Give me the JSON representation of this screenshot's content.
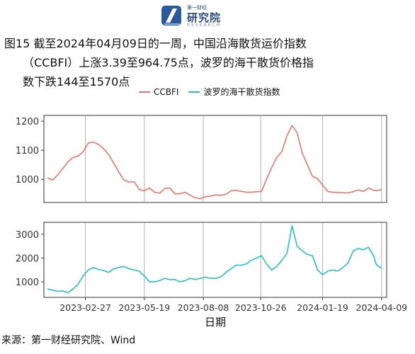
{
  "logo": {
    "text_small": "第一财经",
    "text_main": "研究院",
    "text_en": "RESEARCH"
  },
  "caption": {
    "line1": "图15  截至2024年04月09日的一周，中国沿海散货运价指数",
    "line2": "（CCBFI）上涨3.39至964.75点，波罗的海干散货价格指",
    "line3": "数下跌144至1570点"
  },
  "source": "来源：第一财经研究院、Wind",
  "colors": {
    "ccbfi": "#e8756b",
    "bdi": "#26bfc7",
    "panel_bg": "#ffffff",
    "grid": "#b0b0b0"
  },
  "chart_data": {
    "type": "line",
    "xlabel": "日期",
    "x_ticks": [
      "2023-02-27",
      "2023-05-19",
      "2023-08-08",
      "2023-10-26",
      "2024-01-19",
      "2024-04-09"
    ],
    "panels": [
      {
        "series_name": "CCBFI",
        "yticks": [
          1000,
          1100,
          1200
        ],
        "ylim": [
          920,
          1220
        ],
        "x": [
          "2023-01-06",
          "2023-01-13",
          "2023-01-20",
          "2023-02-03",
          "2023-02-10",
          "2023-02-17",
          "2023-02-24",
          "2023-03-03",
          "2023-03-10",
          "2023-03-17",
          "2023-03-24",
          "2023-03-31",
          "2023-04-07",
          "2023-04-14",
          "2023-04-21",
          "2023-04-28",
          "2023-05-05",
          "2023-05-12",
          "2023-05-19",
          "2023-05-26",
          "2023-06-02",
          "2023-06-09",
          "2023-06-16",
          "2023-06-23",
          "2023-06-30",
          "2023-07-07",
          "2023-07-14",
          "2023-07-21",
          "2023-07-28",
          "2023-08-04",
          "2023-08-11",
          "2023-08-18",
          "2023-08-25",
          "2023-09-01",
          "2023-09-08",
          "2023-09-15",
          "2023-09-22",
          "2023-10-06",
          "2023-10-13",
          "2023-10-20",
          "2023-10-27",
          "2023-11-03",
          "2023-11-10",
          "2023-11-17",
          "2023-11-24",
          "2023-12-01",
          "2023-12-08",
          "2023-12-15",
          "2023-12-22",
          "2023-12-29",
          "2024-01-05",
          "2024-01-12",
          "2024-01-19",
          "2024-01-26",
          "2024-02-02",
          "2024-02-23",
          "2024-03-01",
          "2024-03-08",
          "2024-03-15",
          "2024-03-22",
          "2024-03-29",
          "2024-04-02",
          "2024-04-09"
        ],
        "values": [
          1005,
          997,
          1015,
          1060,
          1075,
          1080,
          1095,
          1125,
          1128,
          1120,
          1105,
          1085,
          1055,
          1025,
          997,
          990,
          992,
          965,
          960,
          970,
          955,
          952,
          968,
          970,
          950,
          950,
          955,
          945,
          936,
          933,
          940,
          942,
          946,
          945,
          948,
          960,
          962,
          955,
          955,
          957,
          958,
          1000,
          1040,
          1075,
          1095,
          1150,
          1185,
          1160,
          1090,
          1050,
          1010,
          1002,
          980,
          958,
          955,
          953,
          957,
          963,
          958,
          970,
          962,
          961,
          964.75
        ]
      },
      {
        "series_name": "波罗的海干散货指数",
        "yticks": [
          1000,
          2000,
          3000
        ],
        "ylim": [
          350,
          3500
        ],
        "x": [
          "2023-01-06",
          "2023-01-13",
          "2023-01-20",
          "2023-01-27",
          "2023-02-03",
          "2023-02-10",
          "2023-02-17",
          "2023-02-24",
          "2023-03-03",
          "2023-03-10",
          "2023-03-17",
          "2023-03-24",
          "2023-03-31",
          "2023-04-07",
          "2023-04-14",
          "2023-04-21",
          "2023-04-28",
          "2023-05-05",
          "2023-05-12",
          "2023-05-19",
          "2023-05-26",
          "2023-06-02",
          "2023-06-09",
          "2023-06-16",
          "2023-06-23",
          "2023-06-30",
          "2023-07-07",
          "2023-07-14",
          "2023-07-21",
          "2023-07-28",
          "2023-08-04",
          "2023-08-11",
          "2023-08-18",
          "2023-08-25",
          "2023-09-01",
          "2023-09-08",
          "2023-09-15",
          "2023-09-22",
          "2023-09-29",
          "2023-10-06",
          "2023-10-13",
          "2023-10-20",
          "2023-10-27",
          "2023-11-03",
          "2023-11-10",
          "2023-11-17",
          "2023-11-24",
          "2023-12-01",
          "2023-12-08",
          "2023-12-15",
          "2023-12-22",
          "2023-12-29",
          "2024-01-05",
          "2024-01-12",
          "2024-01-19",
          "2024-01-26",
          "2024-02-02",
          "2024-02-09",
          "2024-02-16",
          "2024-02-23",
          "2024-03-01",
          "2024-03-08",
          "2024-03-15",
          "2024-03-22",
          "2024-03-29",
          "2024-04-02",
          "2024-04-09"
        ],
        "values": [
          700,
          650,
          600,
          620,
          550,
          700,
          900,
          1250,
          1500,
          1600,
          1520,
          1480,
          1400,
          1550,
          1600,
          1650,
          1550,
          1500,
          1450,
          1250,
          1000,
          1000,
          1050,
          1150,
          1100,
          1100,
          1000,
          1050,
          1150,
          1100,
          1150,
          1200,
          1150,
          1150,
          1200,
          1400,
          1550,
          1700,
          1700,
          1750,
          1900,
          2000,
          2100,
          1750,
          1500,
          1650,
          1900,
          2200,
          3350,
          2500,
          2300,
          2150,
          2100,
          1500,
          1300,
          1450,
          1500,
          1450,
          1600,
          1800,
          2300,
          2400,
          2350,
          2450,
          2100,
          1714,
          1570
        ]
      }
    ]
  }
}
